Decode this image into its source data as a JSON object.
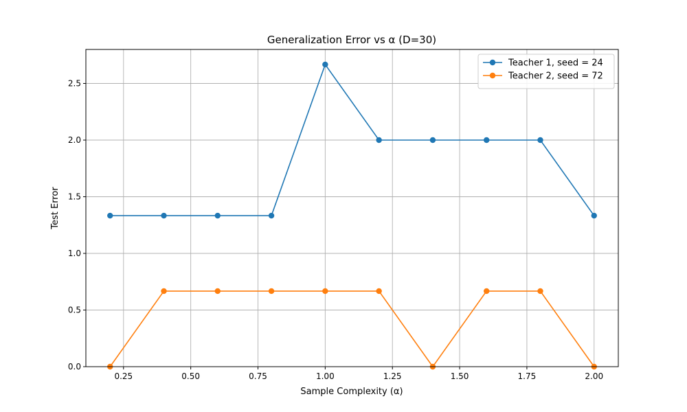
{
  "chart_data": {
    "type": "line",
    "title": "Generalization Error vs α (D=30)",
    "xlabel": "Sample Complexity (α)",
    "ylabel": "Test Error",
    "xlim": [
      0.11,
      2.09
    ],
    "ylim": [
      0,
      2.8
    ],
    "xticks": [
      0.25,
      0.5,
      0.75,
      1.0,
      1.25,
      1.5,
      1.75,
      2.0
    ],
    "xtick_labels": [
      "0.25",
      "0.50",
      "0.75",
      "1.00",
      "1.25",
      "1.50",
      "1.75",
      "2.00"
    ],
    "yticks": [
      0,
      0.5,
      1.0,
      1.5,
      2.0,
      2.5
    ],
    "ytick_labels": [
      "0.0",
      "0.5",
      "1.0",
      "1.5",
      "2.0",
      "2.5"
    ],
    "grid": true,
    "legend_position": "top-right",
    "x": [
      0.2,
      0.4,
      0.6,
      0.8,
      1.0,
      1.2,
      1.4,
      1.6,
      1.8,
      2.0
    ],
    "series": [
      {
        "name": "Teacher 1, seed = 24",
        "color": "#1f77b4",
        "values": [
          1.333,
          1.333,
          1.333,
          1.333,
          2.667,
          2.0,
          2.0,
          2.0,
          2.0,
          1.333
        ]
      },
      {
        "name": "Teacher 2, seed = 72",
        "color": "#ff7f0e",
        "values": [
          0.0,
          0.667,
          0.667,
          0.667,
          0.667,
          0.667,
          0.0,
          0.667,
          0.667,
          0.0
        ]
      }
    ]
  }
}
